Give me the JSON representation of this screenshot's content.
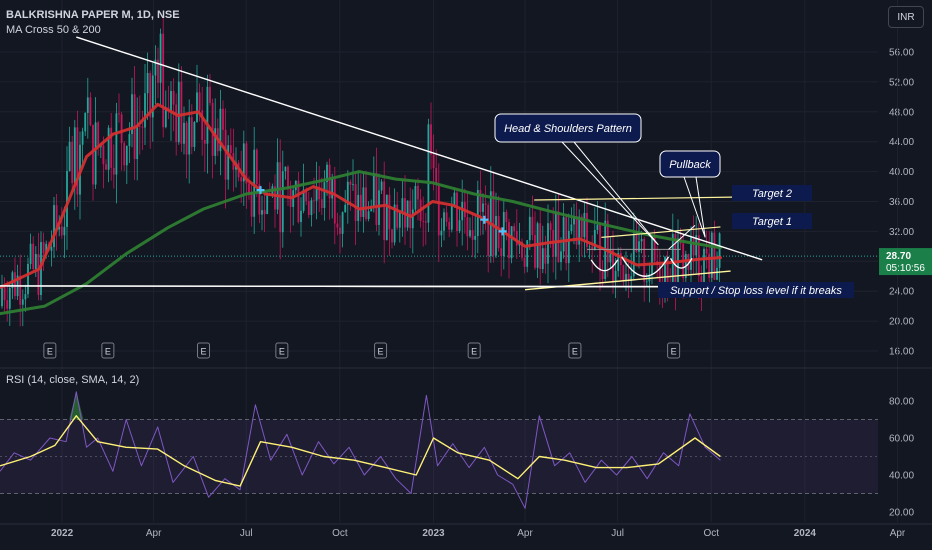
{
  "header": {
    "symbol": "BALKRISHNA PAPER M, 1D, NSE",
    "indicator": "MA Cross 50 & 200",
    "currency": "INR"
  },
  "price_tag": {
    "value": "28.70",
    "countdown": "05:10:56"
  },
  "rsi_label": "RSI (14, close, SMA, 14, 2)",
  "earnings_marker": "E",
  "colors": {
    "background": "#131722",
    "ma50": "#d32f2f",
    "ma200": "#2e7d32",
    "candle_up": "#26a69a",
    "candle_down": "#c2185b",
    "annotation_box": "#0d1a4d",
    "target_line": "#fff59d",
    "rsi_line": "#7e57c2",
    "rsi_ma": "#fff176",
    "price_tag": "#1b7f4a"
  },
  "chart_data": [
    {
      "type": "candlestick",
      "title": "BALKRISHNA PAPER M, 1D, NSE",
      "ylim": [
        15,
        60
      ],
      "y_ticks": [
        "16.00",
        "20.00",
        "24.00",
        "28.00",
        "32.00",
        "36.00",
        "40.00",
        "44.00",
        "48.00",
        "52.00",
        "56.00"
      ],
      "x_ticks": [
        "2022",
        "Apr",
        "Jul",
        "Oct",
        "2023",
        "Apr",
        "Jul",
        "Oct",
        "2024",
        "Apr"
      ],
      "x_range": [
        "2021-11-01",
        "2024-05-01"
      ],
      "series": [
        {
          "name": "MA 50",
          "style": "line",
          "points": [
            [
              "2021-11-01",
              24.5
            ],
            [
              "2021-12-10",
              27
            ],
            [
              "2022-01-01",
              34
            ],
            [
              "2022-01-25",
              42
            ],
            [
              "2022-02-20",
              45
            ],
            [
              "2022-03-15",
              46
            ],
            [
              "2022-04-05",
              49
            ],
            [
              "2022-04-25",
              47.5
            ],
            [
              "2022-05-15",
              48
            ],
            [
              "2022-06-10",
              43
            ],
            [
              "2022-07-01",
              39
            ],
            [
              "2022-07-20",
              37
            ],
            [
              "2022-08-15",
              36.5
            ],
            [
              "2022-09-05",
              38
            ],
            [
              "2022-09-25",
              37
            ],
            [
              "2022-10-20",
              35
            ],
            [
              "2022-11-15",
              35.5
            ],
            [
              "2022-12-10",
              34
            ],
            [
              "2022-12-31",
              36
            ],
            [
              "2023-01-20",
              35.5
            ],
            [
              "2023-02-15",
              34
            ],
            [
              "2023-03-10",
              32
            ],
            [
              "2023-04-01",
              30
            ],
            [
              "2023-04-25",
              30.5
            ],
            [
              "2023-05-25",
              31
            ],
            [
              "2023-06-20",
              29.5
            ],
            [
              "2023-07-20",
              27.5
            ],
            [
              "2023-08-20",
              27.8
            ],
            [
              "2023-09-20",
              28.3
            ],
            [
              "2023-10-10",
              28.5
            ]
          ]
        },
        {
          "name": "MA 200",
          "style": "line",
          "points": [
            [
              "2021-11-01",
              21
            ],
            [
              "2021-12-15",
              22
            ],
            [
              "2022-01-25",
              25
            ],
            [
              "2022-03-05",
              29
            ],
            [
              "2022-04-15",
              32.5
            ],
            [
              "2022-05-20",
              35
            ],
            [
              "2022-07-01",
              37
            ],
            [
              "2022-08-10",
              37.8
            ],
            [
              "2022-09-20",
              39
            ],
            [
              "2022-10-20",
              40
            ],
            [
              "2022-11-25",
              39
            ],
            [
              "2022-12-31",
              38.5
            ],
            [
              "2023-02-10",
              37
            ],
            [
              "2023-03-20",
              36
            ],
            [
              "2023-05-01",
              34.5
            ],
            [
              "2023-06-15",
              33
            ],
            [
              "2023-08-01",
              31.5
            ],
            [
              "2023-09-10",
              30.5
            ],
            [
              "2023-10-10",
              29.8
            ]
          ]
        }
      ],
      "trendlines": [
        {
          "name": "descending-resistance",
          "from": [
            "2022-01-15",
            58
          ],
          "to": [
            "2023-11-20",
            28.2
          ]
        },
        {
          "name": "support-line",
          "from": [
            "2021-11-01",
            24.7
          ],
          "to": [
            "2023-10-10",
            24.6
          ]
        },
        {
          "name": "rising-support",
          "from": [
            "2023-04-01",
            24.2
          ],
          "to": [
            "2023-10-20",
            26.7
          ]
        },
        {
          "name": "target-2",
          "from": [
            "2023-04-10",
            36.2
          ],
          "to": [
            "2023-10-30",
            36.6
          ]
        },
        {
          "name": "target-1",
          "from": [
            "2023-06-15",
            31.2
          ],
          "to": [
            "2023-10-10",
            32.6
          ]
        }
      ],
      "annotations": [
        {
          "text": "Head & Shoulders Pattern"
        },
        {
          "text": "Pullback"
        },
        {
          "text": "Target 2"
        },
        {
          "text": "Target 1"
        },
        {
          "text": "Support / Stop loss level if it breaks"
        }
      ],
      "earnings_dates": [
        "2021-12-20",
        "2022-02-15",
        "2022-05-20",
        "2022-08-05",
        "2022-11-10",
        "2023-02-10",
        "2023-05-20",
        "2023-08-25"
      ],
      "cross_markers": [
        "2022-07-15",
        "2023-02-20",
        "2023-03-10"
      ]
    },
    {
      "type": "line",
      "title": "RSI (14, close, SMA, 14, 2)",
      "ylim": [
        15,
        88
      ],
      "y_ticks": [
        "20.00",
        "40.00",
        "60.00",
        "80.00"
      ],
      "bands": [
        30,
        70
      ],
      "series": [
        {
          "name": "RSI",
          "style": "line",
          "points": [
            [
              "2021-11-01",
              42
            ],
            [
              "2021-11-15",
              52
            ],
            [
              "2021-12-01",
              48
            ],
            [
              "2021-12-20",
              60
            ],
            [
              "2022-01-05",
              58
            ],
            [
              "2022-01-15",
              85
            ],
            [
              "2022-01-25",
              55
            ],
            [
              "2022-02-05",
              60
            ],
            [
              "2022-02-20",
              42
            ],
            [
              "2022-03-05",
              70
            ],
            [
              "2022-03-20",
              45
            ],
            [
              "2022-04-05",
              66
            ],
            [
              "2022-04-20",
              36
            ],
            [
              "2022-05-10",
              50
            ],
            [
              "2022-05-25",
              28
            ],
            [
              "2022-06-10",
              38
            ],
            [
              "2022-06-25",
              32
            ],
            [
              "2022-07-10",
              78
            ],
            [
              "2022-07-25",
              48
            ],
            [
              "2022-08-10",
              62
            ],
            [
              "2022-08-25",
              40
            ],
            [
              "2022-09-10",
              58
            ],
            [
              "2022-09-25",
              46
            ],
            [
              "2022-10-10",
              55
            ],
            [
              "2022-10-25",
              40
            ],
            [
              "2022-11-10",
              50
            ],
            [
              "2022-11-25",
              38
            ],
            [
              "2022-12-10",
              30
            ],
            [
              "2022-12-25",
              83
            ],
            [
              "2023-01-05",
              45
            ],
            [
              "2023-01-20",
              57
            ],
            [
              "2023-02-05",
              44
            ],
            [
              "2023-02-20",
              55
            ],
            [
              "2023-03-05",
              40
            ],
            [
              "2023-03-20",
              35
            ],
            [
              "2023-04-01",
              22
            ],
            [
              "2023-04-15",
              72
            ],
            [
              "2023-04-30",
              45
            ],
            [
              "2023-05-15",
              52
            ],
            [
              "2023-05-30",
              36
            ],
            [
              "2023-06-15",
              48
            ],
            [
              "2023-06-30",
              40
            ],
            [
              "2023-07-15",
              50
            ],
            [
              "2023-07-30",
              38
            ],
            [
              "2023-08-15",
              52
            ],
            [
              "2023-08-30",
              45
            ],
            [
              "2023-09-10",
              73
            ],
            [
              "2023-09-25",
              55
            ],
            [
              "2023-10-10",
              48
            ]
          ]
        },
        {
          "name": "RSI SMA",
          "style": "line",
          "points": [
            [
              "2021-11-01",
              45
            ],
            [
              "2021-12-01",
              50
            ],
            [
              "2021-12-25",
              56
            ],
            [
              "2022-01-15",
              72
            ],
            [
              "2022-02-05",
              58
            ],
            [
              "2022-03-05",
              55
            ],
            [
              "2022-04-05",
              54
            ],
            [
              "2022-05-01",
              45
            ],
            [
              "2022-06-01",
              37
            ],
            [
              "2022-06-25",
              34
            ],
            [
              "2022-07-15",
              58
            ],
            [
              "2022-08-15",
              55
            ],
            [
              "2022-09-15",
              50
            ],
            [
              "2022-10-15",
              48
            ],
            [
              "2022-11-15",
              44
            ],
            [
              "2022-12-15",
              40
            ],
            [
              "2023-01-01",
              60
            ],
            [
              "2023-01-25",
              52
            ],
            [
              "2023-02-25",
              48
            ],
            [
              "2023-03-25",
              38
            ],
            [
              "2023-04-15",
              50
            ],
            [
              "2023-05-10",
              48
            ],
            [
              "2023-06-10",
              44
            ],
            [
              "2023-07-10",
              44
            ],
            [
              "2023-08-10",
              46
            ],
            [
              "2023-09-15",
              60
            ],
            [
              "2023-10-10",
              50
            ]
          ]
        }
      ]
    }
  ]
}
